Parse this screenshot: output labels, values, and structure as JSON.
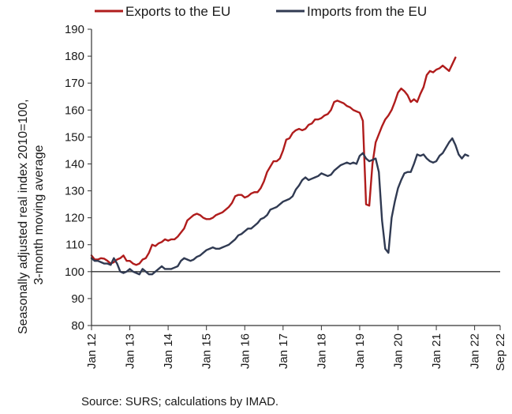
{
  "chart_data": {
    "type": "line",
    "title": "",
    "ylabel_lines": [
      "Seasonally adjusted real index 2010=100,",
      "3-month moving average"
    ],
    "xlabel": "",
    "ylim": [
      80,
      190
    ],
    "yticks": [
      80,
      90,
      100,
      110,
      120,
      130,
      140,
      150,
      160,
      170,
      180,
      190
    ],
    "xticks": [
      {
        "label": "Jan 12",
        "t": 0
      },
      {
        "label": "Jan 13",
        "t": 12
      },
      {
        "label": "Jan 14",
        "t": 24
      },
      {
        "label": "Jan 15",
        "t": 36
      },
      {
        "label": "Jan 16",
        "t": 48
      },
      {
        "label": "Jan 17",
        "t": 60
      },
      {
        "label": "Jan 18",
        "t": 72
      },
      {
        "label": "Jan 19",
        "t": 84
      },
      {
        "label": "Jan 20",
        "t": 96
      },
      {
        "label": "Jan 21",
        "t": 108
      },
      {
        "label": "Jan 22",
        "t": 120
      },
      {
        "label": "Sep 22",
        "t": 128
      }
    ],
    "x_start": "Jan 2012",
    "x_end": "Sep 2022",
    "reference_line": 100,
    "legend_position": "top",
    "grid": false,
    "series": [
      {
        "name": "Exports to the EU",
        "color": "#b01c1c",
        "values": [
          106,
          104.5,
          104.5,
          105,
          104.8,
          104,
          103,
          103.5,
          104.5,
          105,
          106,
          104,
          104,
          103,
          102.5,
          103,
          104.5,
          105,
          107,
          110,
          109.5,
          110.5,
          111,
          112,
          111.5,
          112,
          112,
          113,
          114.5,
          116,
          119,
          120,
          121,
          121.5,
          121,
          120,
          119.5,
          119.5,
          120,
          121,
          121.5,
          122,
          123,
          124,
          125.5,
          128,
          128.5,
          128.5,
          127.5,
          128,
          129,
          129.5,
          129.5,
          131,
          133.5,
          137,
          139,
          141,
          141,
          142,
          145,
          149,
          149.5,
          151.5,
          152.5,
          153,
          152.5,
          153,
          154.5,
          155,
          156.5,
          156.5,
          157,
          158,
          158.5,
          160,
          163,
          163.5,
          163,
          162.5,
          161.5,
          161,
          160,
          159.5,
          159,
          156,
          125,
          124.5,
          140,
          148,
          151,
          154,
          156.5,
          158,
          160,
          163,
          166.5,
          168,
          167,
          165.5,
          163,
          164,
          163,
          166,
          168.5,
          173,
          174.5,
          174,
          175,
          175.5,
          176.5,
          175.5,
          174.5,
          177,
          179.5
        ]
      },
      {
        "name": "Imports from the EU",
        "color": "#303a52",
        "values": [
          105,
          104,
          104,
          103.5,
          103,
          103,
          102.5,
          105,
          103,
          100,
          99.5,
          100,
          101,
          100,
          99.5,
          99,
          101,
          100,
          99,
          99,
          100,
          101,
          102,
          101,
          101,
          101,
          101.5,
          102,
          104,
          105,
          104.5,
          104,
          104.5,
          105.5,
          106,
          107,
          108,
          108.5,
          109,
          108.5,
          108.5,
          109,
          109.5,
          110,
          111,
          112,
          113.5,
          114,
          115,
          116,
          116,
          117,
          118,
          119.5,
          120,
          121,
          123,
          123.5,
          124,
          125,
          126,
          126.5,
          127,
          128,
          130.5,
          132,
          134,
          135,
          134,
          134.5,
          135,
          135.5,
          136.5,
          136,
          135.5,
          136,
          137.5,
          138.5,
          139.5,
          140,
          140.5,
          140,
          140.5,
          140,
          143,
          144,
          142,
          141,
          141.5,
          142,
          137,
          119,
          108.5,
          107,
          120,
          126,
          131,
          134,
          136.5,
          137,
          137,
          140,
          143.5,
          143,
          143.5,
          142,
          141,
          140.5,
          141,
          143,
          144,
          146,
          148,
          149.5,
          147,
          143.5,
          142,
          143.5,
          143
        ]
      }
    ],
    "source_note": "Source: SURS; calculations by IMAD."
  }
}
